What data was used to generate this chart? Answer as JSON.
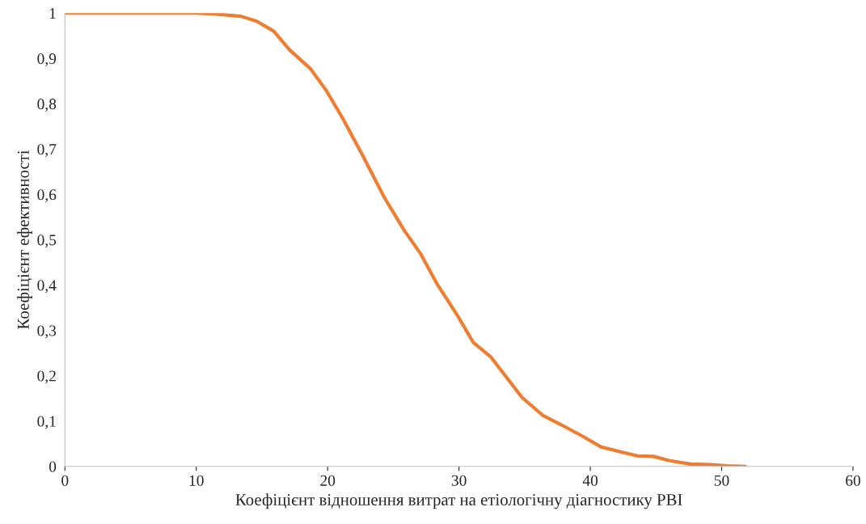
{
  "chart_data": {
    "type": "line",
    "xlabel": "Коефіцієнт відношення витрат на етіологічну діагностику РВІ",
    "ylabel": "Коефіцієнт ефективності",
    "x": [
      0,
      10,
      11.5,
      13.4,
      14.6,
      15.9,
      17.1,
      18.7,
      19.9,
      21.2,
      22.7,
      24.3,
      25.8,
      27.1,
      28.3,
      29.9,
      31.1,
      32.4,
      33.6,
      34.8,
      36.4,
      37.9,
      39.5,
      40.8,
      42.3,
      43.6,
      44.8,
      46.0,
      47.6,
      49.2,
      50.4,
      51.8
    ],
    "series": [
      {
        "color": "#ed7d31",
        "values": [
          1,
          1,
          0.998,
          0.993,
          0.982,
          0.96,
          0.919,
          0.877,
          0.829,
          0.765,
          0.684,
          0.594,
          0.522,
          0.468,
          0.404,
          0.332,
          0.273,
          0.242,
          0.197,
          0.152,
          0.112,
          0.09,
          0.065,
          0.043,
          0.032,
          0.023,
          0.022,
          0.013,
          0.005,
          0.004,
          0.001,
          0
        ]
      }
    ],
    "xlim": [
      0,
      60
    ],
    "xticks": [
      0,
      10,
      20,
      30,
      40,
      50,
      60
    ],
    "ylim": [
      0,
      1
    ],
    "yticks": [
      0,
      {
        "value": 0.1,
        "label": "0,1"
      },
      {
        "value": 0.2,
        "label": "0,2"
      },
      {
        "value": 0.3,
        "label": "0,3"
      },
      {
        "value": 0.4,
        "label": "0,4"
      },
      {
        "value": 0.5,
        "label": "0,5"
      },
      {
        "value": 0.6,
        "label": "0,6"
      },
      {
        "value": 0.7,
        "label": "0,7"
      },
      {
        "value": 0.8,
        "label": "0,8"
      },
      {
        "value": 0.9,
        "label": "0,9"
      },
      1
    ],
    "grid": false,
    "line_style": "solid"
  }
}
